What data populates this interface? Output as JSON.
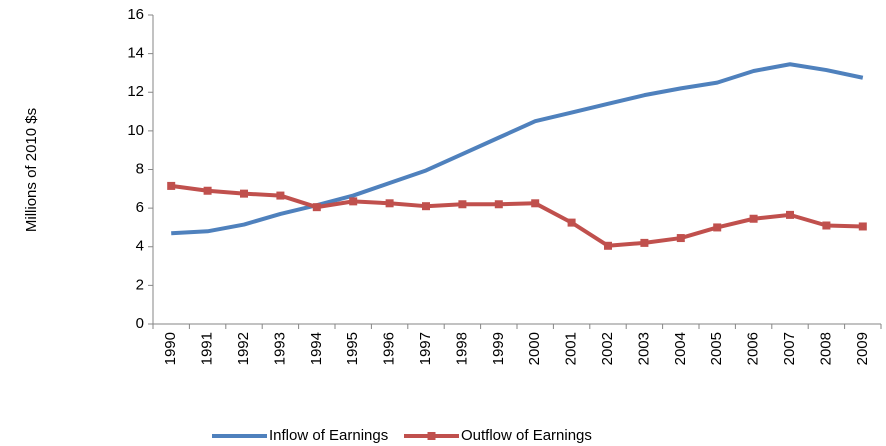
{
  "chart_data": {
    "type": "line",
    "y_axis_label": "Millions of 2010 $s",
    "categories": [
      "1990",
      "1991",
      "1992",
      "1993",
      "1994",
      "1995",
      "1996",
      "1997",
      "1998",
      "1999",
      "2000",
      "2001",
      "2002",
      "2003",
      "2004",
      "2005",
      "2006",
      "2007",
      "2008",
      "2009"
    ],
    "series": [
      {
        "name": "Inflow of Earnings",
        "color": "#4f81bd",
        "marker": "none",
        "values": [
          4.7,
          4.8,
          5.15,
          5.7,
          6.15,
          6.65,
          7.3,
          7.95,
          8.8,
          9.65,
          10.5,
          10.95,
          11.4,
          11.85,
          12.2,
          12.5,
          13.1,
          13.45,
          13.15,
          12.75
        ]
      },
      {
        "name": "Outflow of Earnings",
        "color": "#c0504d",
        "marker": "square",
        "values": [
          7.15,
          6.9,
          6.75,
          6.65,
          6.05,
          6.35,
          6.25,
          6.1,
          6.2,
          6.2,
          6.25,
          5.25,
          4.05,
          4.2,
          4.45,
          5.0,
          5.45,
          5.65,
          5.1,
          5.05
        ]
      }
    ],
    "ylim": [
      0,
      16
    ],
    "yticks": [
      0,
      2,
      4,
      6,
      8,
      10,
      12,
      14,
      16
    ],
    "grid": false,
    "legend": "bottom"
  }
}
